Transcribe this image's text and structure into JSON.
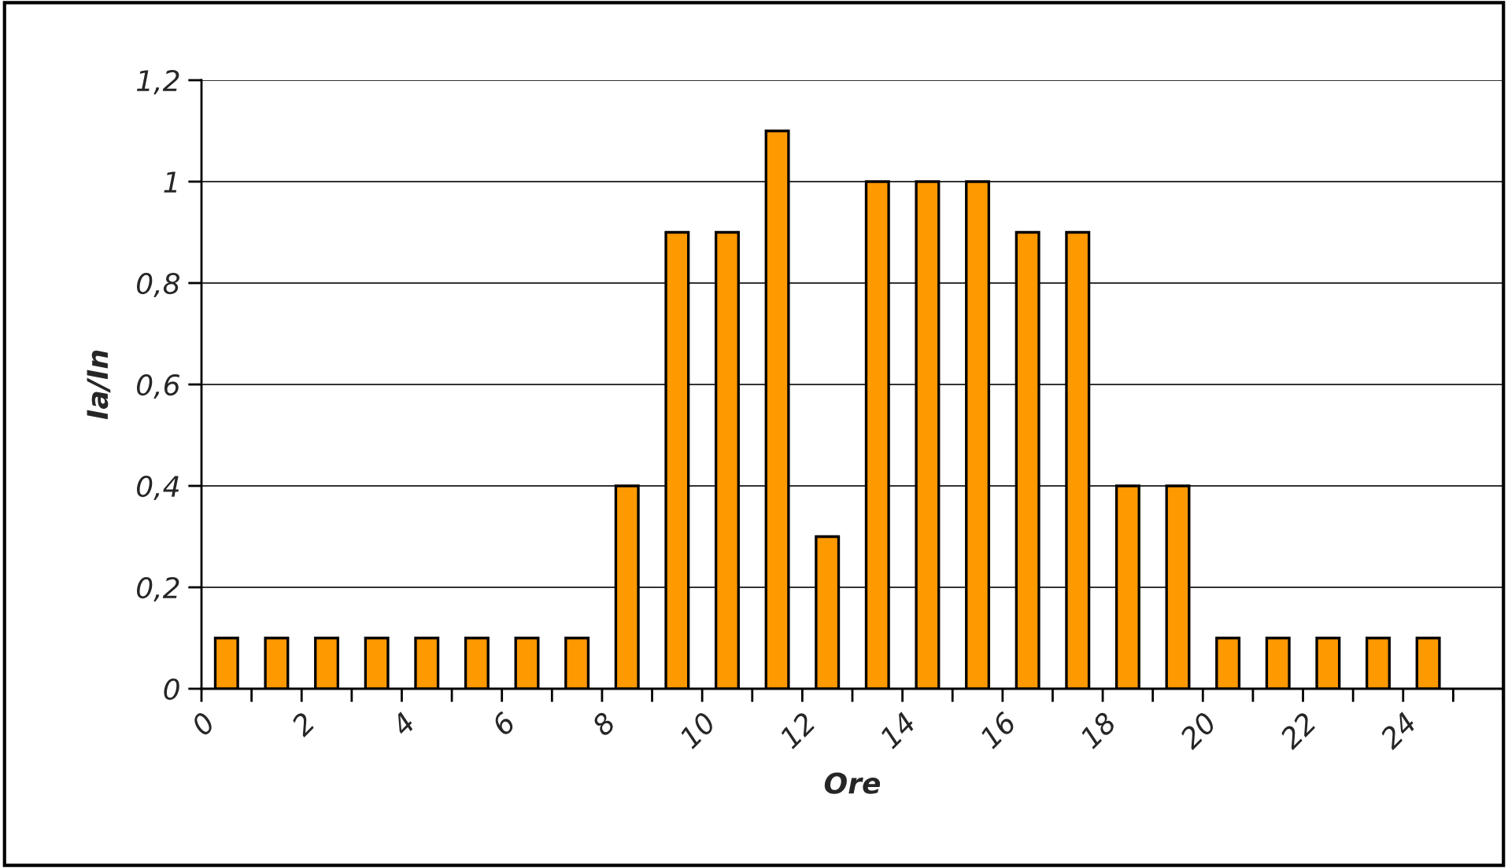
{
  "chart_data": {
    "type": "bar",
    "xlabel": "Ore",
    "ylabel": "Ia/In",
    "x": [
      0.5,
      1.5,
      2.5,
      3.5,
      4.5,
      5.5,
      6.5,
      7.5,
      8.5,
      9.5,
      10.5,
      11.5,
      12.5,
      13.5,
      14.5,
      15.5,
      16.5,
      17.5,
      18.5,
      19.5,
      20.5,
      21.5,
      22.5,
      23.5,
      24.5
    ],
    "values": [
      0.1,
      0.1,
      0.1,
      0.1,
      0.1,
      0.1,
      0.1,
      0.1,
      0.4,
      0.9,
      0.9,
      1.1,
      0.3,
      1,
      1,
      1,
      0.9,
      0.9,
      0.4,
      0.4,
      0.1,
      0.1,
      0.1,
      0.1,
      0.1
    ],
    "color": "#ff9900",
    "xlim": [
      0,
      26
    ],
    "xticks": [
      0,
      {
        "value": 1,
        "label": null
      },
      2,
      {
        "value": 3,
        "label": null
      },
      4,
      {
        "value": 5,
        "label": null
      },
      6,
      {
        "value": 7,
        "label": null
      },
      8,
      {
        "value": 9,
        "label": null
      },
      10,
      {
        "value": 11,
        "label": null
      },
      12,
      {
        "value": 13,
        "label": null
      },
      14,
      {
        "value": 15,
        "label": null
      },
      16,
      {
        "value": 17,
        "label": null
      },
      18,
      {
        "value": 19,
        "label": null
      },
      20,
      {
        "value": 21,
        "label": null
      },
      22,
      {
        "value": 23,
        "label": null
      },
      24,
      {
        "value": 25,
        "label": null
      },
      {
        "value": 26,
        "label": null
      }
    ],
    "ylim": [
      0,
      1.2
    ],
    "yticks": [
      {
        "value": 0,
        "label": "0"
      },
      {
        "value": 0.2,
        "label": "0,2"
      },
      {
        "value": 0.4,
        "label": "0,4"
      },
      {
        "value": 0.6,
        "label": "0,6"
      },
      {
        "value": 0.8,
        "label": "0,8"
      },
      {
        "value": 1,
        "label": "1"
      },
      {
        "value": 1.2,
        "label": "1,2"
      }
    ],
    "grid": "y",
    "legend": false
  }
}
